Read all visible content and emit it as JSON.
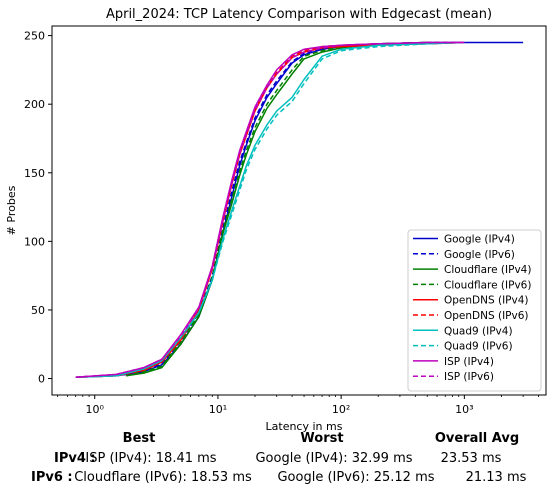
{
  "chart_data": {
    "type": "line",
    "title": "April_2024: TCP Latency Comparison with Edgecast (mean)",
    "xlabel": "Latency in ms",
    "ylabel": "# Probes",
    "xscale": "log",
    "xlim": [
      0.45,
      4600
    ],
    "ylim": [
      -12,
      257
    ],
    "x_ticks": [
      {
        "value": 1,
        "label": "10⁰"
      },
      {
        "value": 10,
        "label": "10¹"
      },
      {
        "value": 100,
        "label": "10²"
      },
      {
        "value": 1000,
        "label": "10³"
      }
    ],
    "y_ticks": [
      0,
      50,
      100,
      150,
      200,
      250
    ],
    "grid": false,
    "legend_position": "lower-right",
    "series": [
      {
        "name": "Google (IPv4)",
        "color": "#0000cc",
        "dash": "solid",
        "x": [
          0.7,
          1.5,
          2.5,
          3.5,
          5,
          7,
          9,
          11,
          13,
          15,
          17,
          20,
          25,
          30,
          40,
          50,
          70,
          100,
          200,
          500,
          1000,
          3000
        ],
        "y": [
          1,
          2,
          5,
          10,
          25,
          45,
          72,
          107,
          133,
          155,
          170,
          188,
          205,
          215,
          230,
          236,
          240,
          242,
          244,
          245,
          245,
          245
        ]
      },
      {
        "name": "Google (IPv6)",
        "color": "#0000cc",
        "dash": "dashed",
        "x": [
          0.7,
          1.5,
          2.5,
          3.5,
          5,
          7,
          9,
          11,
          13,
          15,
          17,
          20,
          25,
          30,
          40,
          50,
          70,
          100,
          200,
          500,
          1000
        ],
        "y": [
          1,
          2,
          5,
          11,
          27,
          48,
          75,
          110,
          137,
          158,
          172,
          190,
          207,
          217,
          231,
          237,
          241,
          243,
          244,
          245,
          245
        ]
      },
      {
        "name": "Cloudflare (IPv4)",
        "color": "#008000",
        "dash": "solid",
        "x": [
          1.8,
          2.5,
          3.5,
          5,
          7,
          9,
          11,
          13,
          15,
          17,
          20,
          25,
          30,
          40,
          50,
          70,
          100,
          200,
          500
        ],
        "y": [
          2,
          4,
          8,
          25,
          45,
          72,
          106,
          128,
          148,
          163,
          180,
          197,
          207,
          222,
          233,
          238,
          241,
          244,
          245
        ]
      },
      {
        "name": "Cloudflare (IPv6)",
        "color": "#008000",
        "dash": "dashed",
        "x": [
          1.8,
          2.5,
          3.5,
          5,
          7,
          9,
          11,
          13,
          15,
          17,
          20,
          25,
          30,
          40,
          50,
          70,
          100,
          200,
          500
        ],
        "y": [
          2,
          5,
          9,
          27,
          47,
          74,
          108,
          131,
          151,
          166,
          183,
          200,
          210,
          225,
          235,
          239,
          242,
          244,
          245
        ]
      },
      {
        "name": "OpenDNS (IPv4)",
        "color": "#ff0000",
        "dash": "solid",
        "x": [
          0.7,
          1.5,
          2.5,
          3.5,
          5,
          7,
          9,
          11,
          13,
          15,
          17,
          20,
          25,
          30,
          40,
          50,
          70,
          100,
          200,
          500,
          1000
        ],
        "y": [
          1,
          2,
          6,
          12,
          28,
          50,
          80,
          115,
          142,
          163,
          177,
          195,
          212,
          222,
          234,
          238,
          241,
          242,
          243,
          244,
          245
        ]
      },
      {
        "name": "OpenDNS (IPv6)",
        "color": "#ff0000",
        "dash": "dashed",
        "x": [
          0.7,
          1.5,
          2.5,
          3.5,
          5,
          7,
          9,
          11,
          13,
          15,
          17,
          20,
          25,
          30,
          40,
          50,
          70,
          100,
          200,
          500,
          1000
        ],
        "y": [
          1,
          2,
          6,
          12,
          29,
          51,
          82,
          117,
          144,
          165,
          179,
          197,
          213,
          223,
          235,
          239,
          242,
          243,
          244,
          244,
          245
        ]
      },
      {
        "name": "Quad9 (IPv4)",
        "color": "#00bfbf",
        "dash": "solid",
        "x": [
          0.7,
          1.5,
          2.5,
          3.5,
          5,
          7,
          9,
          11,
          13,
          15,
          17,
          20,
          25,
          30,
          40,
          50,
          70,
          100,
          200,
          500,
          1000
        ],
        "y": [
          1,
          2,
          7,
          13,
          30,
          48,
          72,
          102,
          123,
          140,
          155,
          170,
          185,
          195,
          205,
          218,
          235,
          240,
          243,
          244,
          245
        ]
      },
      {
        "name": "Quad9 (IPv6)",
        "color": "#00bfbf",
        "dash": "dashed",
        "x": [
          0.7,
          1.5,
          2.5,
          3.5,
          5,
          7,
          9,
          11,
          13,
          15,
          17,
          20,
          25,
          30,
          40,
          50,
          70,
          100,
          200,
          500,
          1000
        ],
        "y": [
          1,
          2,
          7,
          13,
          30,
          48,
          72,
          100,
          120,
          137,
          152,
          167,
          182,
          192,
          202,
          215,
          233,
          239,
          242,
          244,
          245
        ]
      },
      {
        "name": "ISP (IPv4)",
        "color": "#bf00bf",
        "dash": "solid",
        "x": [
          0.7,
          1.5,
          2.5,
          3.5,
          5,
          7,
          9,
          11,
          13,
          15,
          17,
          20,
          25,
          30,
          40,
          50,
          70,
          100,
          200,
          500,
          1000
        ],
        "y": [
          1,
          3,
          8,
          14,
          32,
          52,
          82,
          118,
          145,
          166,
          180,
          198,
          214,
          225,
          236,
          240,
          242,
          243,
          244,
          245,
          245
        ]
      },
      {
        "name": "ISP (IPv6)",
        "color": "#bf00bf",
        "dash": "dashed",
        "x": [
          0.7,
          1.5,
          2.5,
          3.5,
          5,
          7,
          9,
          11,
          13,
          15,
          17,
          20,
          25,
          30,
          40,
          50,
          70,
          100,
          200,
          500,
          1000
        ],
        "y": [
          1,
          3,
          8,
          14,
          31,
          51,
          81,
          116,
          143,
          164,
          178,
          196,
          212,
          222,
          234,
          238,
          241,
          243,
          244,
          245,
          245
        ]
      }
    ]
  },
  "summary": {
    "headers": {
      "best": "Best",
      "worst": "Worst",
      "avg": "Overall Avg"
    },
    "rows": [
      {
        "label": "IPv4 :",
        "best": "ISP (IPv4): 18.41 ms",
        "worst": "Google (IPv4): 32.99 ms",
        "avg": "23.53 ms"
      },
      {
        "label": "IPv6 :",
        "best": "Cloudflare (IPv6): 18.53 ms",
        "worst": "Google (IPv6): 25.12 ms",
        "avg": "21.13 ms"
      }
    ]
  }
}
